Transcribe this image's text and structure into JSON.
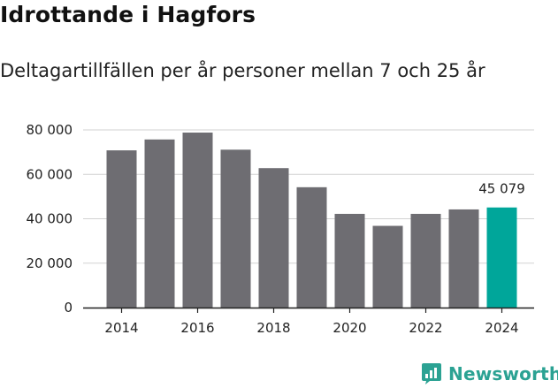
{
  "brand": {
    "name": "Newsworthy",
    "color": "#2ba293",
    "icon": "bar-chart-logo-icon"
  },
  "chart_data": {
    "type": "bar",
    "title": "Idrottande i Hagfors",
    "subtitle": "Deltagartillfällen per år personer mellan 7 och 25 år",
    "xlabel": "",
    "ylabel": "",
    "categories": [
      "2014",
      "2015",
      "2016",
      "2017",
      "2018",
      "2019",
      "2020",
      "2021",
      "2022",
      "2023",
      "2024"
    ],
    "values": [
      70800,
      75700,
      78800,
      71100,
      62800,
      54200,
      42200,
      36800,
      42200,
      44200,
      45079
    ],
    "x_tick_labels": [
      "2014",
      "2016",
      "2018",
      "2020",
      "2022",
      "2024"
    ],
    "y_tick_labels": [
      "0",
      "20 000",
      "40 000",
      "60 000",
      "80 000"
    ],
    "y_ticks": [
      0,
      20000,
      40000,
      60000,
      80000
    ],
    "ylim": [
      0,
      80000
    ],
    "grid": true,
    "bar_color": "#6e6d72",
    "highlight_color": "#00a69a",
    "highlight_index": 10,
    "data_labels": [
      {
        "index": 10,
        "text": "45 079"
      }
    ]
  }
}
